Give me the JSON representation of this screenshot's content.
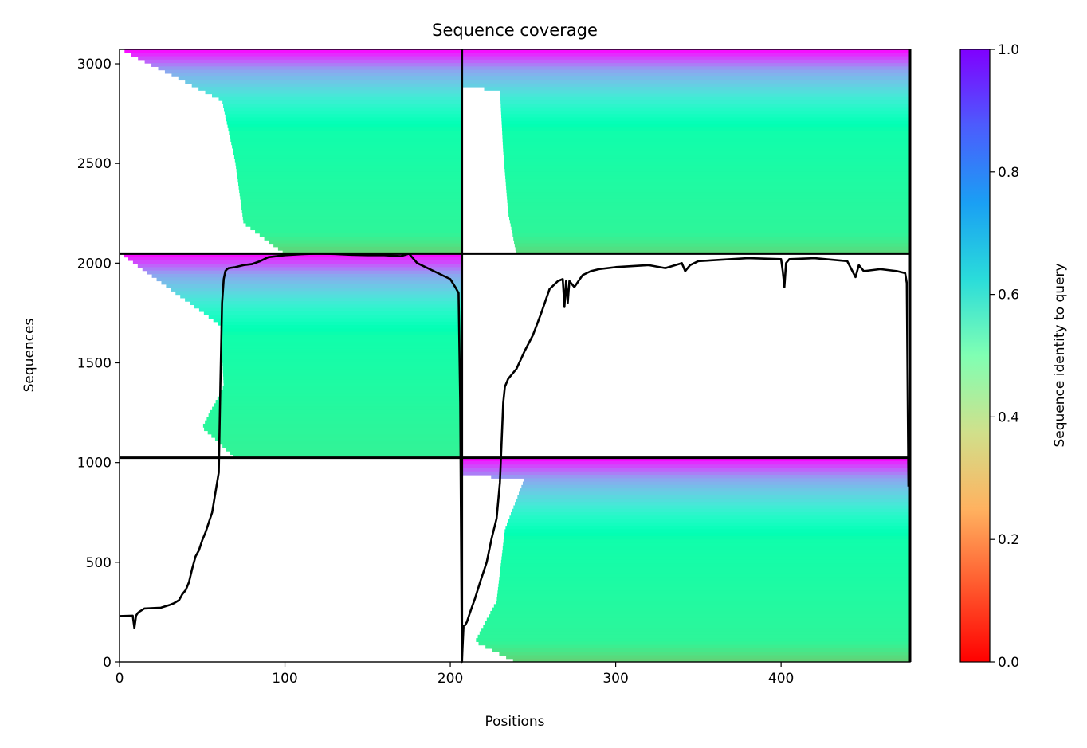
{
  "chart_data": {
    "type": "heatmap",
    "title": "Sequence coverage",
    "xlabel": "Positions",
    "ylabel": "Sequences",
    "xlim": [
      0,
      478
    ],
    "ylim": [
      0,
      3072
    ],
    "xticks": [
      0,
      100,
      200,
      300,
      400
    ],
    "yticks": [
      0,
      500,
      1000,
      1500,
      2000,
      2500,
      3000
    ],
    "colorbar": {
      "label": "Sequence identity to query",
      "range": [
        0.0,
        1.0
      ],
      "ticks": [
        "0.0",
        "0.2",
        "0.4",
        "0.6",
        "0.8",
        "1.0"
      ],
      "colormap": "rainbow_r"
    },
    "blocks": [
      {
        "x": [
          0,
          207
        ],
        "y": [
          2048,
          3072
        ],
        "bottom_identity": 0.3,
        "gap_edge": [
          [
            0,
            1.0
          ],
          [
            0.25,
            62
          ],
          [
            0.55,
            70
          ],
          [
            0.85,
            75
          ],
          [
            1.0,
            100
          ]
        ]
      },
      {
        "x": [
          207,
          478
        ],
        "y": [
          2048,
          3072
        ],
        "bottom_identity": 0.32,
        "gap_edge": [
          [
            0,
            1.0
          ],
          [
            0.2,
            230
          ],
          [
            0.5,
            232
          ],
          [
            0.8,
            235
          ],
          [
            1.0,
            240
          ]
        ]
      },
      {
        "x": [
          0,
          207
        ],
        "y": [
          1024,
          2048
        ],
        "bottom_identity": 0.4,
        "gap_edge": [
          [
            0,
            1.0
          ],
          [
            0.35,
            61
          ],
          [
            0.65,
            63
          ],
          [
            0.85,
            50
          ],
          [
            1.0,
            70
          ]
        ]
      },
      {
        "x": [
          207,
          478
        ],
        "y": [
          0,
          1024
        ],
        "bottom_identity": 0.3,
        "gap_edge": [
          [
            0,
            1.0
          ],
          [
            0.1,
            245
          ],
          [
            0.35,
            233
          ],
          [
            0.7,
            228
          ],
          [
            0.9,
            215
          ],
          [
            1.0,
            240
          ]
        ]
      }
    ],
    "block_separators": {
      "x": [
        207,
        478
      ],
      "y": [
        1024,
        2048
      ]
    },
    "coverage_line": {
      "x": [
        0,
        8,
        9,
        10,
        11,
        12,
        15,
        20,
        25,
        30,
        33,
        36,
        38,
        40,
        42,
        44,
        46,
        48,
        50,
        52,
        54,
        56,
        57,
        58,
        59,
        60,
        61,
        62,
        63,
        64,
        65,
        66,
        70,
        75,
        80,
        85,
        90,
        100,
        110,
        120,
        130,
        140,
        150,
        160,
        170,
        175,
        180,
        190,
        200,
        203,
        205,
        206,
        207,
        208,
        209,
        210,
        212,
        215,
        218,
        220,
        222,
        225,
        228,
        230,
        231,
        232,
        233,
        235,
        240,
        245,
        250,
        255,
        260,
        265,
        268,
        269,
        270,
        271,
        272,
        275,
        280,
        285,
        290,
        300,
        310,
        320,
        330,
        340,
        342,
        345,
        350,
        360,
        380,
        400,
        401,
        402,
        403,
        405,
        420,
        440,
        445,
        447,
        450,
        460,
        470,
        475,
        476,
        477
      ],
      "y": [
        230,
        232,
        170,
        232,
        245,
        252,
        268,
        270,
        272,
        285,
        295,
        310,
        340,
        360,
        400,
        470,
        530,
        560,
        610,
        650,
        700,
        750,
        800,
        850,
        900,
        950,
        1400,
        1800,
        1920,
        1960,
        1970,
        1975,
        1980,
        1990,
        1995,
        2010,
        2030,
        2040,
        2045,
        2048,
        2046,
        2042,
        2040,
        2040,
        2035,
        2048,
        2000,
        1960,
        1920,
        1880,
        1850,
        1300,
        0,
        180,
        185,
        200,
        250,
        320,
        400,
        450,
        500,
        620,
        720,
        900,
        1100,
        1300,
        1380,
        1420,
        1470,
        1560,
        1640,
        1750,
        1870,
        1910,
        1920,
        1780,
        1910,
        1800,
        1910,
        1880,
        1940,
        1960,
        1970,
        1980,
        1985,
        1990,
        1975,
        2000,
        1960,
        1990,
        2010,
        2015,
        2025,
        2020,
        1960,
        1880,
        2000,
        2020,
        2025,
        2010,
        1930,
        1990,
        1960,
        1970,
        1960,
        1950,
        1900,
        880
      ]
    }
  }
}
